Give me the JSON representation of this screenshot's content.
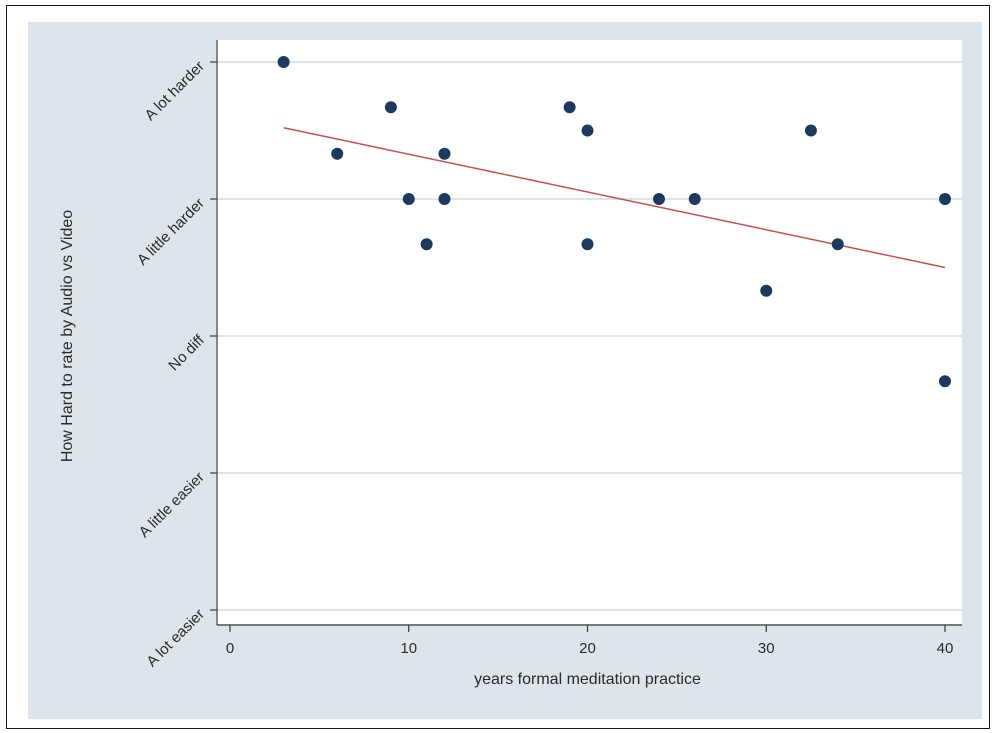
{
  "chart_data": {
    "type": "scatter",
    "title": "",
    "xlabel": "years formal meditation practice",
    "ylabel": "How Hard to rate by Audio vs Video",
    "xlim": [
      0,
      40
    ],
    "ylim": [
      1,
      5
    ],
    "x_ticks": [
      0,
      10,
      20,
      30,
      40
    ],
    "y_ticks": [
      {
        "value": 1,
        "label": "A lot easier"
      },
      {
        "value": 2,
        "label": "A little easier"
      },
      {
        "value": 3,
        "label": "No diff"
      },
      {
        "value": 4,
        "label": "A little harder"
      },
      {
        "value": 5,
        "label": "A lot harder"
      }
    ],
    "grid": true,
    "colors": {
      "background": "#dde4ea",
      "plot": "#ffffff",
      "points": "#1c3a5e",
      "fit_line": "#c0524f"
    },
    "points": [
      {
        "x": 3,
        "y": 5.0
      },
      {
        "x": 6,
        "y": 4.33
      },
      {
        "x": 9,
        "y": 4.67
      },
      {
        "x": 10,
        "y": 4.0
      },
      {
        "x": 11,
        "y": 3.67
      },
      {
        "x": 12,
        "y": 4.33
      },
      {
        "x": 12,
        "y": 4.0
      },
      {
        "x": 19,
        "y": 4.67
      },
      {
        "x": 20,
        "y": 4.5
      },
      {
        "x": 20,
        "y": 3.67
      },
      {
        "x": 24,
        "y": 4.0
      },
      {
        "x": 26,
        "y": 4.0
      },
      {
        "x": 30,
        "y": 3.33
      },
      {
        "x": 32.5,
        "y": 4.5
      },
      {
        "x": 34,
        "y": 3.67
      },
      {
        "x": 40,
        "y": 4.0
      },
      {
        "x": 40,
        "y": 2.67
      }
    ],
    "fit_line": {
      "x": [
        3,
        40
      ],
      "y": [
        4.52,
        3.5
      ]
    }
  }
}
